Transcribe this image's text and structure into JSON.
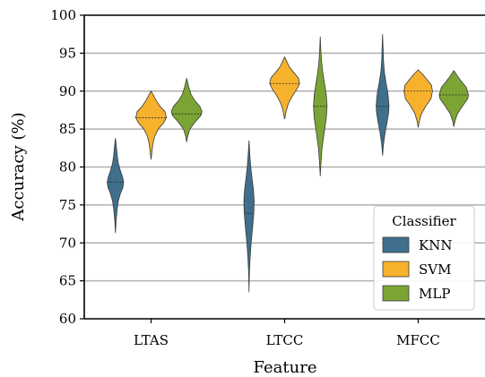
{
  "chart_data": {
    "type": "violin",
    "xlabel": "Feature",
    "ylabel": "Accuracy (%)",
    "categories": [
      "LTAS",
      "LTCC",
      "MFCC"
    ],
    "ylim": [
      60,
      100
    ],
    "yticks": [
      60,
      65,
      70,
      75,
      80,
      85,
      90,
      95,
      100
    ],
    "grid": "horizontal",
    "legend": {
      "title": "Classifier",
      "position": "lower-right",
      "entries": [
        "KNN",
        "SVM",
        "MLP"
      ]
    },
    "colors": {
      "KNN": "#3f6f8c",
      "SVM": "#f6b12d",
      "MLP": "#7ba434"
    },
    "series": [
      {
        "name": "KNN",
        "violins": [
          {
            "category": "LTAS",
            "min": 71.3,
            "max": 83.8,
            "median": 78.0,
            "profile": [
              [
                71.3,
                0
              ],
              [
                73,
                0.04
              ],
              [
                74.5,
                0.1
              ],
              [
                75.5,
                0.16
              ],
              [
                76.5,
                0.28
              ],
              [
                77.3,
                0.42
              ],
              [
                78,
                0.46
              ],
              [
                78.7,
                0.4
              ],
              [
                79.5,
                0.28
              ],
              [
                80.5,
                0.16
              ],
              [
                81.5,
                0.1
              ],
              [
                82.5,
                0.06
              ],
              [
                83.8,
                0
              ]
            ]
          },
          {
            "category": "LTCC",
            "min": 63.5,
            "max": 83.5,
            "median": 73.9,
            "profile": [
              [
                63.5,
                0
              ],
              [
                66,
                0.02
              ],
              [
                68,
                0.06
              ],
              [
                70,
                0.12
              ],
              [
                72,
                0.2
              ],
              [
                74,
                0.27
              ],
              [
                75.5,
                0.29
              ],
              [
                77,
                0.25
              ],
              [
                78.5,
                0.17
              ],
              [
                80,
                0.1
              ],
              [
                81.5,
                0.05
              ],
              [
                83.5,
                0
              ]
            ]
          },
          {
            "category": "MFCC",
            "min": 81.5,
            "max": 97.5,
            "median": 88.0,
            "profile": [
              [
                81.5,
                0
              ],
              [
                83,
                0.05
              ],
              [
                84.5,
                0.14
              ],
              [
                86,
                0.26
              ],
              [
                87.2,
                0.34
              ],
              [
                88,
                0.36
              ],
              [
                89,
                0.33
              ],
              [
                90,
                0.28
              ],
              [
                91,
                0.2
              ],
              [
                92.5,
                0.1
              ],
              [
                94,
                0.05
              ],
              [
                95.5,
                0.03
              ],
              [
                97.5,
                0
              ]
            ]
          }
        ]
      },
      {
        "name": "SVM",
        "violins": [
          {
            "category": "LTAS",
            "min": 81.0,
            "max": 90.0,
            "median": 86.5,
            "profile": [
              [
                81,
                0
              ],
              [
                82,
                0.05
              ],
              [
                83,
                0.1
              ],
              [
                84,
                0.2
              ],
              [
                85,
                0.4
              ],
              [
                85.8,
                0.7
              ],
              [
                86.5,
                0.86
              ],
              [
                87.3,
                0.78
              ],
              [
                88,
                0.5
              ],
              [
                88.8,
                0.28
              ],
              [
                89.5,
                0.12
              ],
              [
                90,
                0
              ]
            ]
          },
          {
            "category": "LTCC",
            "min": 86.3,
            "max": 94.5,
            "median": 91.0,
            "profile": [
              [
                86.3,
                0
              ],
              [
                87.3,
                0.08
              ],
              [
                88.3,
                0.2
              ],
              [
                89.3,
                0.42
              ],
              [
                90.3,
                0.7
              ],
              [
                91,
                0.84
              ],
              [
                91.7,
                0.78
              ],
              [
                92.5,
                0.5
              ],
              [
                93.2,
                0.26
              ],
              [
                94,
                0.1
              ],
              [
                94.5,
                0
              ]
            ]
          },
          {
            "category": "MFCC",
            "min": 85.2,
            "max": 92.8,
            "median": 90.0,
            "profile": [
              [
                85.2,
                0
              ],
              [
                86,
                0.06
              ],
              [
                87,
                0.18
              ],
              [
                88,
                0.42
              ],
              [
                89,
                0.72
              ],
              [
                90,
                0.8
              ],
              [
                90.8,
                0.74
              ],
              [
                91.5,
                0.5
              ],
              [
                92.2,
                0.26
              ],
              [
                92.8,
                0
              ]
            ]
          }
        ]
      },
      {
        "name": "MLP",
        "violins": [
          {
            "category": "LTAS",
            "min": 83.3,
            "max": 91.7,
            "median": 87.0,
            "profile": [
              [
                83.3,
                0
              ],
              [
                84,
                0.05
              ],
              [
                85,
                0.18
              ],
              [
                86,
                0.5
              ],
              [
                86.8,
                0.8
              ],
              [
                87.3,
                0.86
              ],
              [
                88,
                0.74
              ],
              [
                88.8,
                0.44
              ],
              [
                89.6,
                0.24
              ],
              [
                90.5,
                0.12
              ],
              [
                91.7,
                0
              ]
            ]
          },
          {
            "category": "LTCC",
            "min": 78.8,
            "max": 97.2,
            "median": 88.0,
            "profile": [
              [
                78.8,
                0
              ],
              [
                80.5,
                0.04
              ],
              [
                82.5,
                0.1
              ],
              [
                84.5,
                0.22
              ],
              [
                86.5,
                0.34
              ],
              [
                88,
                0.38
              ],
              [
                89.5,
                0.34
              ],
              [
                91,
                0.24
              ],
              [
                92.5,
                0.14
              ],
              [
                94,
                0.07
              ],
              [
                95.5,
                0.03
              ],
              [
                97.2,
                0
              ]
            ]
          },
          {
            "category": "MFCC",
            "min": 85.3,
            "max": 92.7,
            "median": 89.5,
            "profile": [
              [
                85.3,
                0
              ],
              [
                86,
                0.06
              ],
              [
                87,
                0.2
              ],
              [
                88,
                0.48
              ],
              [
                89,
                0.78
              ],
              [
                89.5,
                0.82
              ],
              [
                90.5,
                0.7
              ],
              [
                91.3,
                0.42
              ],
              [
                92,
                0.2
              ],
              [
                92.7,
                0
              ]
            ]
          }
        ]
      }
    ]
  }
}
